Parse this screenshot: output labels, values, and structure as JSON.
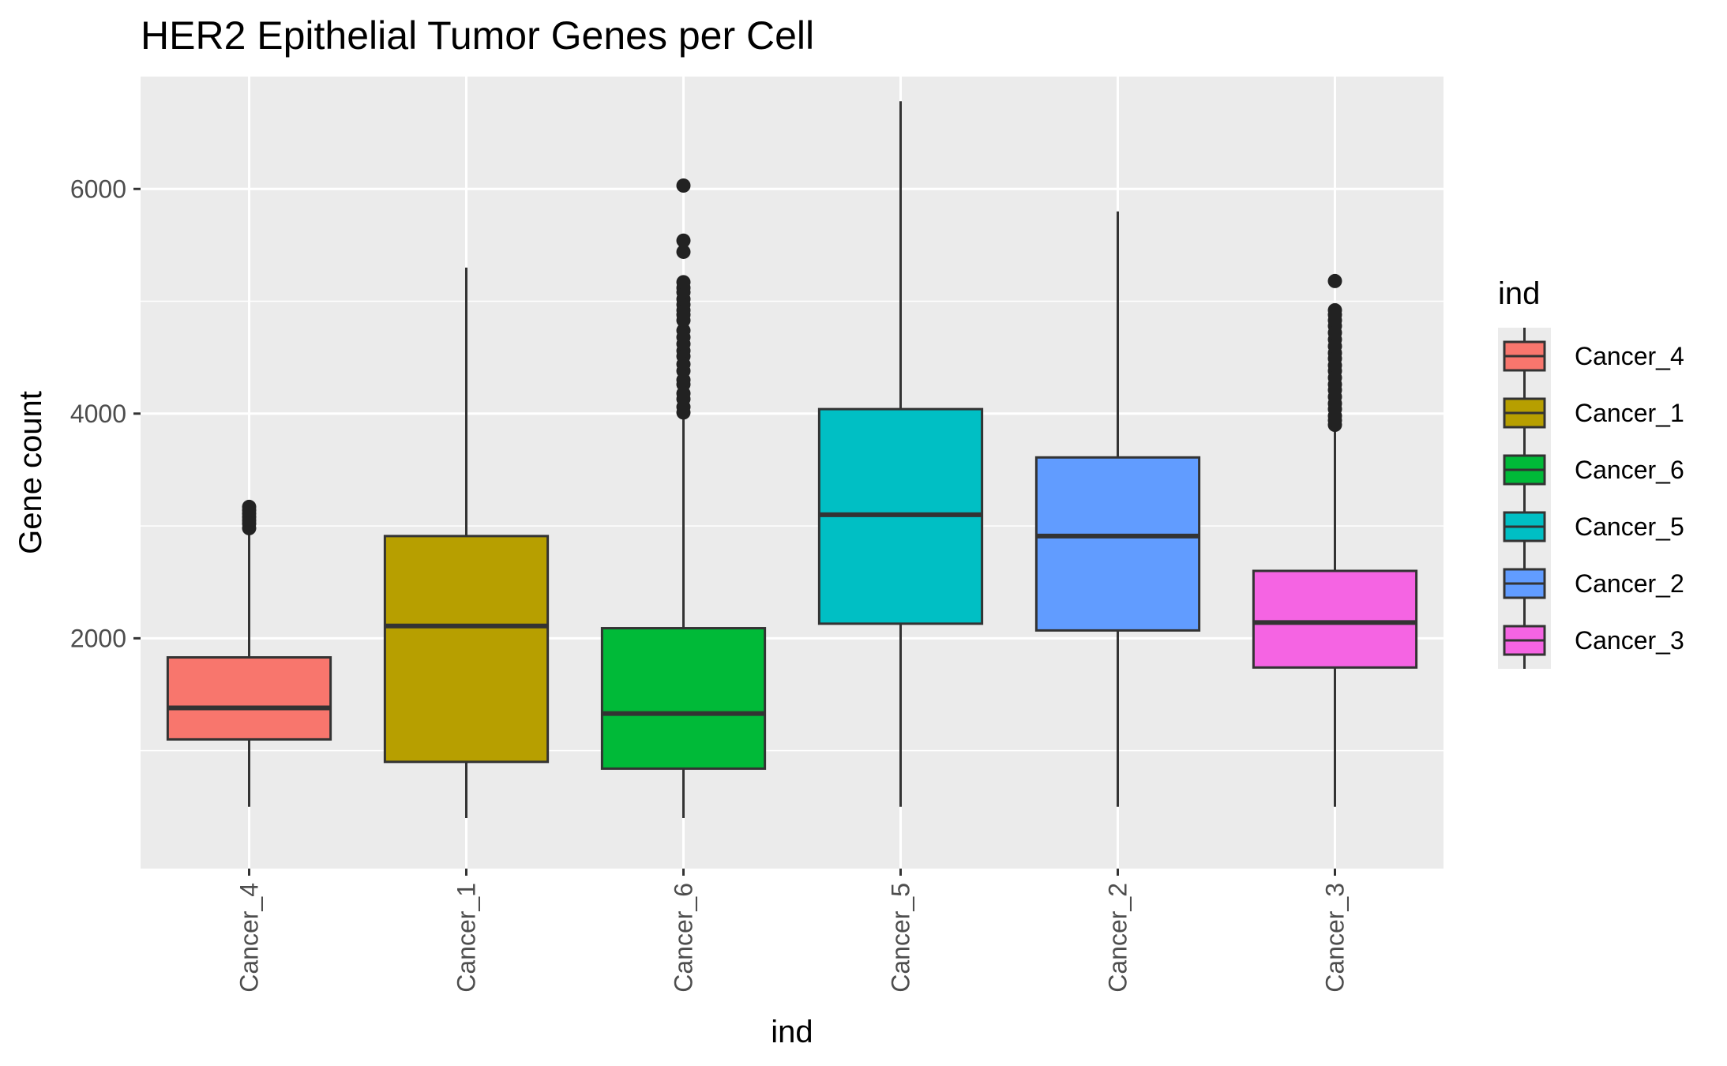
{
  "chart_data": {
    "type": "box",
    "title": "HER2 Epithelial Tumor Genes per Cell",
    "xlabel": "ind",
    "ylabel": "Gene count",
    "ylim": [
      -50,
      7000
    ],
    "yticks": [
      2000,
      4000,
      6000
    ],
    "grid": true,
    "legend": {
      "title": "ind",
      "placement": "right"
    },
    "categories": [
      "Cancer_4",
      "Cancer_1",
      "Cancer_6",
      "Cancer_5",
      "Cancer_2",
      "Cancer_3"
    ],
    "series": [
      {
        "name": "Cancer_4",
        "color": "#F8766D",
        "whisker_low": 500,
        "q1": 1100,
        "median": 1380,
        "q3": 1830,
        "whisker_high": 2950,
        "outliers": [
          2980,
          3020,
          3050,
          3080,
          3110,
          3140,
          3170
        ]
      },
      {
        "name": "Cancer_1",
        "color": "#B79F00",
        "whisker_low": 400,
        "q1": 900,
        "median": 2110,
        "q3": 2910,
        "whisker_high": 5300,
        "outliers": []
      },
      {
        "name": "Cancer_6",
        "color": "#00BA38",
        "whisker_low": 400,
        "q1": 840,
        "median": 1330,
        "q3": 2090,
        "whisker_high": 3990,
        "outliers": [
          4010,
          4060,
          4130,
          4180,
          4260,
          4300,
          4380,
          4440,
          4510,
          4560,
          4620,
          4680,
          4740,
          4830,
          4880,
          4920,
          4970,
          5020,
          5080,
          5120,
          5170,
          5440,
          5540,
          6030
        ]
      },
      {
        "name": "Cancer_5",
        "color": "#00BFC4",
        "whisker_low": 500,
        "q1": 2130,
        "median": 3100,
        "q3": 4040,
        "whisker_high": 6780,
        "outliers": []
      },
      {
        "name": "Cancer_2",
        "color": "#619CFF",
        "whisker_low": 500,
        "q1": 2070,
        "median": 2910,
        "q3": 3610,
        "whisker_high": 5800,
        "outliers": []
      },
      {
        "name": "Cancer_3",
        "color": "#F564E3",
        "whisker_low": 500,
        "q1": 1740,
        "median": 2140,
        "q3": 2600,
        "whisker_high": 3870,
        "outliers": [
          3900,
          3940,
          3980,
          4040,
          4090,
          4150,
          4210,
          4260,
          4320,
          4380,
          4430,
          4490,
          4540,
          4600,
          4660,
          4720,
          4780,
          4830,
          4880,
          4920,
          5180
        ]
      }
    ]
  }
}
